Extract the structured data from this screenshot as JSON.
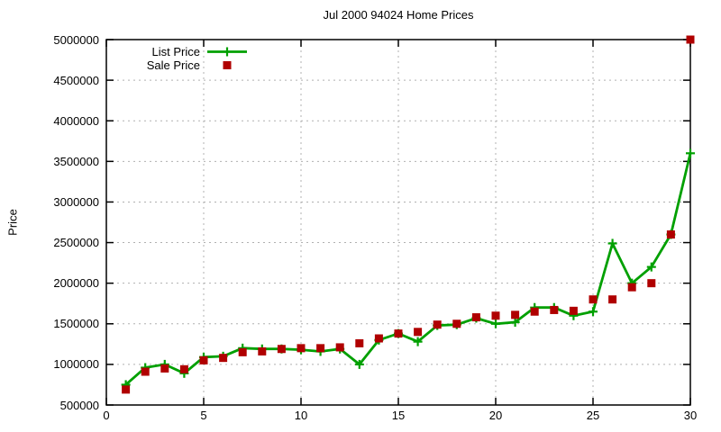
{
  "title": "Jul 2000 94024 Home Prices",
  "colors": {
    "list_price": "#00a000",
    "sale_price": "#b00000",
    "grid": "#b0b0b0",
    "border": "#000000",
    "text": "#000000",
    "background": "#ffffff"
  },
  "legend": {
    "position": "top-left-inside",
    "entries": [
      {
        "label": "List Price",
        "marker": "green-line-with-plus"
      },
      {
        "label": "Sale Price",
        "marker": "red-square"
      }
    ]
  },
  "chart_data": {
    "type": "line",
    "title": "Jul 2000 94024 Home Prices",
    "xlabel": "",
    "ylabel": "Price",
    "xlim": [
      0,
      30
    ],
    "ylim": [
      500000,
      5000000
    ],
    "xticks": [
      0,
      5,
      10,
      15,
      20,
      25,
      30
    ],
    "yticks": [
      500000,
      1000000,
      1500000,
      2000000,
      2500000,
      3000000,
      3500000,
      4000000,
      4500000,
      5000000
    ],
    "grid": true,
    "legend_position": "top-left-inside",
    "x": [
      1,
      2,
      3,
      4,
      5,
      6,
      7,
      8,
      9,
      10,
      11,
      12,
      13,
      14,
      15,
      16,
      17,
      18,
      19,
      20,
      21,
      22,
      23,
      24,
      25,
      26,
      27,
      28,
      29,
      30
    ],
    "series": [
      {
        "name": "List Price",
        "style": "line-with-plus-markers",
        "color": "#00a000",
        "values": [
          750000,
          960000,
          1000000,
          890000,
          1090000,
          1100000,
          1200000,
          1190000,
          1190000,
          1180000,
          1160000,
          1190000,
          1000000,
          1300000,
          1380000,
          1280000,
          1480000,
          1490000,
          1570000,
          1500000,
          1520000,
          1700000,
          1700000,
          1600000,
          1650000,
          2490000,
          2000000,
          2200000,
          2600000,
          3600000
        ]
      },
      {
        "name": "Sale Price",
        "style": "square-points",
        "color": "#b00000",
        "values": [
          690000,
          910000,
          950000,
          940000,
          1050000,
          1080000,
          1150000,
          1160000,
          1190000,
          1200000,
          1200000,
          1210000,
          1260000,
          1320000,
          1380000,
          1400000,
          1490000,
          1500000,
          1580000,
          1600000,
          1610000,
          1650000,
          1670000,
          1660000,
          1800000,
          1800000,
          1950000,
          2000000,
          2600000,
          5000000
        ]
      }
    ]
  }
}
